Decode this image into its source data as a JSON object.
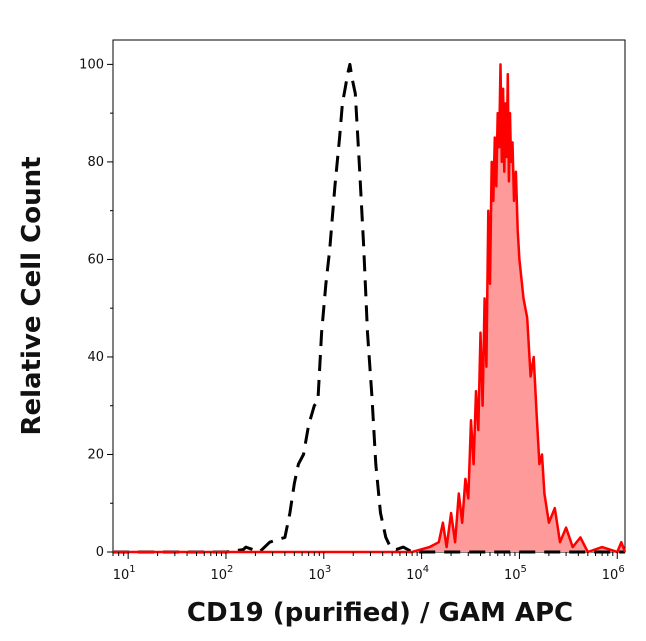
{
  "chart_data": {
    "type": "area",
    "xlabel": "CD19 (purified) / GAM APC",
    "ylabel": "Relative Cell Count",
    "x_scale": "log",
    "xlim": [
      7,
      1200000.0
    ],
    "ylim": [
      0,
      105
    ],
    "x_ticks": [
      {
        "value": 10,
        "base": "10",
        "exp": "1"
      },
      {
        "value": 100,
        "base": "10",
        "exp": "2"
      },
      {
        "value": 1000,
        "base": "10",
        "exp": "3"
      },
      {
        "value": 10000,
        "base": "10",
        "exp": "4"
      },
      {
        "value": 100000,
        "base": "10",
        "exp": "5"
      },
      {
        "value": 1000000,
        "base": "10",
        "exp": "6"
      }
    ],
    "y_ticks": [
      0,
      20,
      40,
      60,
      80,
      100
    ],
    "grid": false,
    "legend": "none",
    "series": [
      {
        "style": "dashed",
        "color": "#000000",
        "fill": "none",
        "x": [
          7,
          100,
          150,
          160,
          220,
          280,
          330,
          400,
          450,
          500,
          550,
          620,
          700,
          800,
          870,
          950,
          1050,
          1150,
          1300,
          1450,
          1550,
          1650,
          1750,
          1850,
          1950,
          2100,
          2300,
          2550,
          2800,
          3100,
          3400,
          3800,
          4300,
          4800,
          5500,
          6500,
          8000,
          12000,
          1200000.0
        ],
        "y": [
          0,
          0,
          0.5,
          1,
          0,
          2,
          2.5,
          3,
          8,
          14,
          18,
          20,
          26,
          30,
          31,
          45,
          55,
          62,
          75,
          85,
          92,
          95,
          98,
          100,
          97,
          94,
          80,
          63,
          45,
          32,
          18,
          8,
          3,
          1,
          0.5,
          1,
          0,
          0,
          0
        ]
      },
      {
        "style": "solid",
        "color": "#ff0000",
        "fill": "#ff9a9a",
        "x": [
          7,
          8000,
          12000,
          15000,
          16500,
          18000,
          20000,
          22000,
          24000,
          26000,
          28000,
          30000,
          32000,
          34000,
          36000,
          38000,
          40000,
          42000,
          44000,
          46000,
          48000,
          50000,
          52000,
          54000,
          56000,
          58000,
          60000,
          62000,
          64000,
          66000,
          68000,
          70000,
          72000,
          74000,
          76000,
          78000,
          80000,
          82000,
          85000,
          88000,
          92000,
          96000,
          100000,
          110000,
          120000,
          130000,
          140000,
          150000,
          160000,
          170000,
          180000,
          200000,
          230000,
          260000,
          300000,
          350000,
          420000,
          500000,
          700000,
          1000000,
          1100000,
          1200000
        ],
        "y": [
          0,
          0,
          1,
          2,
          6,
          1,
          8,
          2,
          12,
          6,
          15,
          11,
          27,
          18,
          33,
          25,
          45,
          30,
          52,
          38,
          70,
          55,
          80,
          72,
          85,
          75,
          90,
          83,
          100,
          80,
          95,
          78,
          92,
          81,
          98,
          76,
          90,
          80,
          84,
          72,
          78,
          66,
          60,
          52,
          48,
          36,
          40,
          28,
          18,
          20,
          12,
          6,
          9,
          2,
          5,
          1,
          3,
          0,
          1,
          0,
          2,
          0
        ]
      }
    ]
  }
}
